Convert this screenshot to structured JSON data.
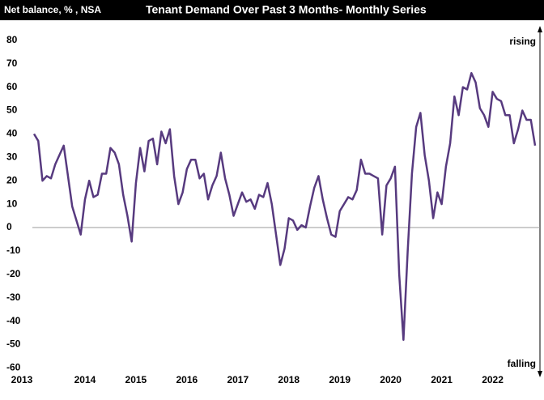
{
  "chart_data": {
    "type": "line",
    "title": "Tenant Demand Over Past 3 Months- Monthly Series",
    "subtitle": "Net balance, % , NSA",
    "annotations": [
      "rising",
      "falling"
    ],
    "categories": [
      "2013",
      null,
      null,
      null,
      null,
      null,
      null,
      null,
      null,
      null,
      null,
      null,
      "2014",
      null,
      null,
      null,
      null,
      null,
      null,
      null,
      null,
      null,
      null,
      null,
      "2015",
      null,
      null,
      null,
      null,
      null,
      null,
      null,
      null,
      null,
      null,
      null,
      "2016",
      null,
      null,
      null,
      null,
      null,
      null,
      null,
      null,
      null,
      null,
      null,
      "2017",
      null,
      null,
      null,
      null,
      null,
      null,
      null,
      null,
      null,
      null,
      null,
      "2018",
      null,
      null,
      null,
      null,
      null,
      null,
      null,
      null,
      null,
      null,
      null,
      "2019",
      null,
      null,
      null,
      null,
      null,
      null,
      null,
      null,
      null,
      null,
      null,
      "2020",
      null,
      null,
      null,
      null,
      null,
      null,
      null,
      null,
      null,
      null,
      null,
      "2021",
      null,
      null,
      null,
      null,
      null,
      null,
      null,
      null,
      null,
      null,
      null,
      "2022",
      null,
      null,
      null,
      null,
      null,
      null,
      null,
      null,
      null,
      null
    ],
    "series": [
      {
        "name": "Tenant Demand",
        "color": "#573a7f",
        "values": [
          40,
          37,
          20,
          22,
          21,
          27,
          31,
          35,
          22,
          9,
          3,
          -3,
          12,
          20,
          13,
          14,
          23,
          23,
          34,
          32,
          27,
          14,
          5,
          -6,
          19,
          34,
          24,
          37,
          38,
          27,
          41,
          36,
          42,
          22,
          10,
          15,
          25,
          29,
          29,
          21,
          23,
          12,
          18,
          22,
          32,
          21,
          14,
          5,
          10,
          15,
          11,
          12,
          8,
          14,
          13,
          19,
          10,
          -3,
          -16,
          -9,
          4,
          3,
          -1,
          1,
          0,
          9,
          17,
          22,
          12,
          4,
          -3,
          -4,
          7,
          10,
          13,
          12,
          16,
          29,
          23,
          23,
          22,
          21,
          -3,
          18,
          21,
          26,
          -20,
          -48,
          -10,
          23,
          43,
          49,
          31,
          20,
          4,
          15,
          10,
          26,
          36,
          56,
          48,
          60,
          59,
          66,
          62,
          51,
          48,
          43,
          58,
          55,
          54,
          48,
          48,
          36,
          42,
          50,
          46,
          46,
          35
        ]
      }
    ],
    "ylim": [
      -60,
      80
    ],
    "yticks": [
      -60,
      -50,
      -40,
      -30,
      -20,
      -10,
      0,
      10,
      20,
      30,
      40,
      50,
      60,
      70,
      80
    ],
    "zero_line": true,
    "grid": false
  }
}
